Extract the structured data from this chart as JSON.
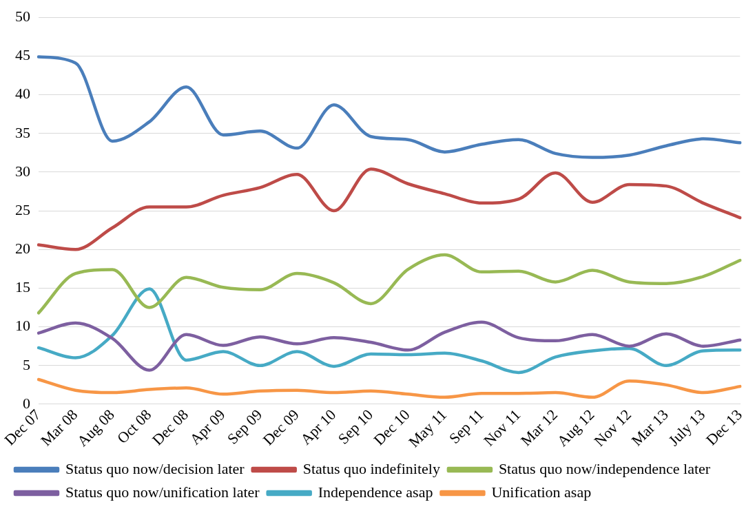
{
  "chart_data": {
    "type": "line",
    "categories": [
      "Dec 07",
      "Mar 08",
      "Aug 08",
      "Oct 08",
      "Dec 08",
      "Apr 09",
      "Sep 09",
      "Dec 09",
      "Apr 10",
      "Sep 10",
      "Dec 10",
      "May 11",
      "Sep 11",
      "Nov 11",
      "Mar 12",
      "Aug 12",
      "Nov 12",
      "Mar 13",
      "July 13",
      "Dec 13"
    ],
    "series": [
      {
        "name": "Status quo now/decision later",
        "color": "#4a7ebb",
        "values": [
          44.9,
          44.1,
          34.0,
          36.5,
          41.0,
          34.8,
          35.3,
          33.1,
          38.7,
          34.6,
          34.2,
          32.6,
          33.6,
          34.2,
          32.4,
          31.9,
          32.2,
          33.4,
          34.3,
          33.8
        ]
      },
      {
        "name": "Status quo indefinitely",
        "color": "#be4b48",
        "values": [
          20.6,
          20.0,
          22.8,
          25.5,
          25.5,
          27.0,
          28.0,
          29.7,
          25.0,
          30.4,
          28.5,
          27.2,
          26.0,
          26.5,
          29.9,
          26.1,
          28.4,
          28.2,
          26.0,
          24.1
        ]
      },
      {
        "name": "Status quo now/independence later",
        "color": "#98b954",
        "values": [
          11.8,
          16.9,
          17.4,
          12.5,
          16.4,
          15.1,
          14.8,
          16.9,
          15.7,
          13.0,
          17.4,
          19.3,
          17.1,
          17.2,
          15.8,
          17.3,
          15.8,
          15.6,
          16.5,
          18.6
        ]
      },
      {
        "name": "Status quo now/unification later",
        "color": "#7d5fa0",
        "values": [
          9.2,
          10.5,
          8.5,
          4.4,
          9.0,
          7.6,
          8.7,
          7.8,
          8.6,
          8.0,
          7.0,
          9.3,
          10.6,
          8.6,
          8.2,
          9.0,
          7.5,
          9.1,
          7.5,
          8.3
        ]
      },
      {
        "name": "Independence asap",
        "color": "#46aac5",
        "values": [
          7.3,
          6.0,
          8.9,
          14.9,
          5.7,
          6.8,
          5.0,
          6.8,
          4.9,
          6.5,
          6.4,
          6.6,
          5.6,
          4.1,
          6.1,
          6.9,
          7.2,
          5.0,
          6.9,
          7.0
        ]
      },
      {
        "name": "Unification asap",
        "color": "#f79646",
        "values": [
          3.2,
          1.8,
          1.5,
          1.9,
          2.1,
          1.3,
          1.7,
          1.8,
          1.5,
          1.7,
          1.3,
          0.9,
          1.4,
          1.4,
          1.5,
          0.9,
          3.0,
          2.5,
          1.5,
          2.3
        ]
      }
    ],
    "ylim": [
      0,
      50
    ],
    "yticks": [
      0,
      5,
      10,
      15,
      20,
      25,
      30,
      35,
      40,
      45,
      50
    ],
    "grid": "y",
    "legend": "bottom",
    "marker": "none",
    "line_style": "solid"
  }
}
